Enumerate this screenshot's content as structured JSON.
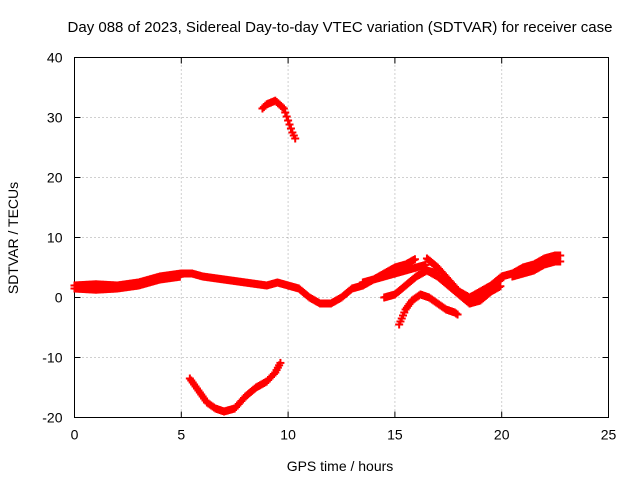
{
  "chart_data": {
    "type": "scatter",
    "title": "Day 088 of 2023, Sidereal Day-to-day VTEC variation (SDTVAR) for receiver case",
    "xlabel": "GPS time / hours",
    "ylabel": "SDTVAR / TECUs",
    "xlim": [
      0,
      25
    ],
    "ylim": [
      -20,
      40
    ],
    "x_ticks": [
      0,
      5,
      10,
      15,
      20,
      25
    ],
    "y_ticks": [
      -20,
      -10,
      0,
      10,
      20,
      30,
      40
    ],
    "grid": true,
    "series_color": "#ff0000",
    "series": [
      {
        "name": "main-trace",
        "x": [
          0,
          1,
          2,
          3,
          4,
          5,
          5.5,
          6,
          7,
          8,
          9,
          9.5,
          10,
          10.5,
          11,
          11.5,
          12,
          12.5,
          13
        ],
        "y": [
          2,
          2.2,
          2,
          2.5,
          3.5,
          4,
          4,
          3.5,
          3,
          2.5,
          2,
          2.5,
          2,
          1.5,
          0,
          -1,
          -1,
          0,
          1.5
        ]
      },
      {
        "name": "main-trace-lower",
        "x": [
          0,
          1,
          2,
          3,
          4,
          5
        ],
        "y": [
          1.5,
          1.3,
          1.5,
          2,
          3,
          3.5
        ]
      },
      {
        "name": "high-arc",
        "x": [
          8.8,
          9,
          9.4,
          9.8,
          10,
          10.2,
          10.4
        ],
        "y": [
          31.5,
          32.2,
          32.8,
          31.5,
          29.5,
          27.5,
          26
        ]
      },
      {
        "name": "low-arc",
        "x": [
          5.4,
          5.8,
          6.2,
          6.6,
          7,
          7.5,
          8,
          8.5,
          9,
          9.4,
          9.7
        ],
        "y": [
          -13.5,
          -15.5,
          -17.5,
          -18.5,
          -19,
          -18.5,
          -16.5,
          -15,
          -14,
          -12.5,
          -10.5
        ]
      },
      {
        "name": "mid-arc-a",
        "x": [
          13,
          13.5,
          14,
          14.5,
          15,
          15.5,
          16
        ],
        "y": [
          1.5,
          2,
          3,
          4,
          5,
          5.5,
          6.5
        ]
      },
      {
        "name": "mid-arc-b",
        "x": [
          13.5,
          14,
          14.5,
          15,
          15.5,
          16,
          16.5
        ],
        "y": [
          2.5,
          3,
          3.5,
          4,
          4.5,
          5,
          5.5
        ]
      },
      {
        "name": "mid-arc-c",
        "x": [
          14.5,
          15,
          15.5,
          16,
          16.5,
          17
        ],
        "y": [
          0,
          0.5,
          2,
          3.5,
          4.5,
          4
        ]
      },
      {
        "name": "dip-arc-a",
        "x": [
          15.2,
          15.5,
          15.8,
          16.2,
          16.6,
          17,
          17.4,
          17.8,
          18
        ],
        "y": [
          -4.5,
          -2,
          -0.5,
          0.5,
          0,
          -1,
          -2,
          -2.5,
          -3
        ]
      },
      {
        "name": "dip-arc-b",
        "x": [
          16.5,
          17,
          17.5,
          18,
          18.5,
          19,
          19.5,
          20
        ],
        "y": [
          6.5,
          5,
          3,
          1,
          0,
          1,
          2,
          3
        ]
      },
      {
        "name": "dip-arc-c",
        "x": [
          16.5,
          17,
          17.5,
          18,
          18.5,
          19,
          19.5,
          20
        ],
        "y": [
          4.5,
          3.5,
          2,
          0.5,
          -1,
          -0.5,
          1,
          2
        ]
      },
      {
        "name": "rise-arc",
        "x": [
          18.5,
          19,
          19.5,
          20,
          20.5,
          21,
          21.5,
          22,
          22.5,
          22.8
        ],
        "y": [
          -1,
          0.5,
          2,
          3.5,
          4,
          5,
          5.5,
          6.5,
          7,
          7
        ]
      },
      {
        "name": "rise-arc-low",
        "x": [
          20.5,
          21,
          21.5,
          22,
          22.5,
          22.8
        ],
        "y": [
          3.5,
          4,
          4.5,
          5.5,
          6,
          6
        ]
      }
    ]
  }
}
